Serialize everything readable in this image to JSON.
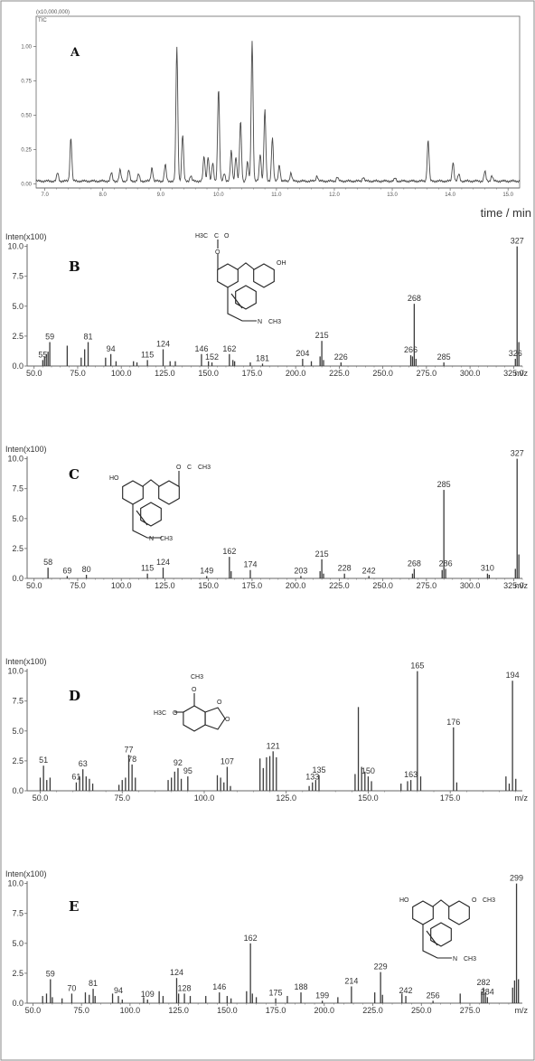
{
  "colors": {
    "trace": "#4a4a4a",
    "axis": "#666666",
    "frame": "#8a8a8a",
    "text": "#333333"
  },
  "chart_data": [
    {
      "panel_label": "A",
      "type": "line",
      "scale_text": "(x10,000,000)",
      "trace_label": "TIC",
      "xlabel": "time / min",
      "xlim": [
        6.85,
        15.2
      ],
      "ylim": [
        -0.03,
        1.22
      ],
      "x_ticks": [
        7.0,
        8.0,
        9.0,
        10.0,
        11.0,
        12.0,
        13.0,
        14.0,
        15.0
      ],
      "x_tick_labels": [
        "7.0",
        "8.0",
        "9.0",
        "10.0",
        "11.0",
        "12.0",
        "13.0",
        "14.0",
        "15.0"
      ],
      "y_ticks": [
        0.0,
        0.25,
        0.5,
        0.75,
        1.0
      ],
      "y_tick_labels": [
        "0.00",
        "0.25",
        "0.50",
        "0.75",
        "1.00"
      ],
      "baseline": 0.02,
      "peaks": [
        [
          7.22,
          0.08
        ],
        [
          7.45,
          0.34
        ],
        [
          8.15,
          0.08
        ],
        [
          8.3,
          0.1
        ],
        [
          8.45,
          0.1
        ],
        [
          8.62,
          0.07
        ],
        [
          8.85,
          0.12
        ],
        [
          9.08,
          0.14
        ],
        [
          9.28,
          1.0
        ],
        [
          9.38,
          0.36
        ],
        [
          9.52,
          0.06
        ],
        [
          9.75,
          0.2
        ],
        [
          9.82,
          0.2
        ],
        [
          9.9,
          0.15
        ],
        [
          10.0,
          0.7
        ],
        [
          10.1,
          0.08
        ],
        [
          10.22,
          0.24
        ],
        [
          10.3,
          0.2
        ],
        [
          10.38,
          0.46
        ],
        [
          10.5,
          0.16
        ],
        [
          10.58,
          1.05
        ],
        [
          10.72,
          0.22
        ],
        [
          10.8,
          0.54
        ],
        [
          10.93,
          0.34
        ],
        [
          11.05,
          0.14
        ],
        [
          11.25,
          0.08
        ],
        [
          11.7,
          0.06
        ],
        [
          12.05,
          0.05
        ],
        [
          12.5,
          0.05
        ],
        [
          13.05,
          0.04
        ],
        [
          13.62,
          0.32
        ],
        [
          14.05,
          0.16
        ],
        [
          14.15,
          0.07
        ],
        [
          14.6,
          0.09
        ],
        [
          14.72,
          0.06
        ]
      ]
    },
    {
      "panel_label": "B",
      "type": "bar",
      "ylabel": "Inten(x100)",
      "xlabel": "m/z",
      "xlim": [
        46,
        330
      ],
      "ylim": [
        0,
        10.2
      ],
      "x_ticks": [
        50,
        75,
        100,
        125,
        150,
        175,
        200,
        225,
        250,
        275,
        300,
        325
      ],
      "x_tick_labels": [
        "50.0",
        "75.0",
        "100.0",
        "125.0",
        "150.0",
        "175.0",
        "200.0",
        "225.0",
        "250.0",
        "275.0",
        "300.0",
        "325.0"
      ],
      "y_ticks": [
        0,
        2.5,
        5,
        7.5,
        10
      ],
      "y_tick_labels": [
        "0.0",
        "2.5",
        "5.0",
        "7.5",
        "10.0"
      ],
      "peaks": [
        [
          55,
          0.5
        ],
        [
          56,
          0.8
        ],
        [
          57,
          1.0
        ],
        [
          58,
          1.2
        ],
        [
          59,
          2.0
        ],
        [
          69,
          1.7
        ],
        [
          77,
          0.7
        ],
        [
          79,
          1.4
        ],
        [
          81,
          2.0
        ],
        [
          91,
          0.7
        ],
        [
          94,
          1.0
        ],
        [
          97,
          0.4
        ],
        [
          107,
          0.4
        ],
        [
          109,
          0.3
        ],
        [
          115,
          0.5
        ],
        [
          124,
          1.4
        ],
        [
          128,
          0.4
        ],
        [
          131,
          0.4
        ],
        [
          146,
          1.0
        ],
        [
          150,
          0.4
        ],
        [
          152,
          0.3
        ],
        [
          162,
          1.0
        ],
        [
          164,
          0.5
        ],
        [
          165,
          0.4
        ],
        [
          174,
          0.3
        ],
        [
          181,
          0.2
        ],
        [
          204,
          0.6
        ],
        [
          209,
          0.4
        ],
        [
          214,
          0.8
        ],
        [
          215,
          2.1
        ],
        [
          216,
          0.5
        ],
        [
          226,
          0.3
        ],
        [
          266,
          0.9
        ],
        [
          267,
          0.8
        ],
        [
          268,
          5.2
        ],
        [
          269,
          0.6
        ],
        [
          285,
          0.3
        ],
        [
          326,
          0.6
        ],
        [
          327,
          10.0
        ],
        [
          328,
          2.0
        ]
      ],
      "peak_labels": [
        [
          59,
          "59"
        ],
        [
          55,
          "55"
        ],
        [
          81,
          "81"
        ],
        [
          94,
          "94"
        ],
        [
          115,
          "115"
        ],
        [
          124,
          "124"
        ],
        [
          146,
          "146"
        ],
        [
          152,
          "152"
        ],
        [
          162,
          "162"
        ],
        [
          181,
          "181"
        ],
        [
          204,
          "204"
        ],
        [
          215,
          "215"
        ],
        [
          226,
          "226"
        ],
        [
          266,
          "266"
        ],
        [
          268,
          "268"
        ],
        [
          285,
          "285"
        ],
        [
          326,
          "326"
        ],
        [
          327,
          "327"
        ]
      ]
    },
    {
      "panel_label": "C",
      "type": "bar",
      "ylabel": "Inten(x100)",
      "xlabel": "m/z",
      "xlim": [
        46,
        330
      ],
      "ylim": [
        0,
        10.2
      ],
      "x_ticks": [
        50,
        75,
        100,
        125,
        150,
        175,
        200,
        225,
        250,
        275,
        300,
        325
      ],
      "x_tick_labels": [
        "50.0",
        "75.0",
        "100.0",
        "125.0",
        "150.0",
        "175.0",
        "200.0",
        "225.0",
        "250.0",
        "275.0",
        "300.0",
        "325.0"
      ],
      "y_ticks": [
        0,
        2.5,
        5,
        7.5,
        10
      ],
      "y_tick_labels": [
        "0.0",
        "2.5",
        "5.0",
        "7.5",
        "10.0"
      ],
      "peaks": [
        [
          58,
          0.9
        ],
        [
          69,
          0.2
        ],
        [
          80,
          0.3
        ],
        [
          115,
          0.4
        ],
        [
          124,
          0.9
        ],
        [
          149,
          0.2
        ],
        [
          162,
          1.8
        ],
        [
          163,
          0.6
        ],
        [
          174,
          0.7
        ],
        [
          203,
          0.2
        ],
        [
          214,
          0.6
        ],
        [
          215,
          1.6
        ],
        [
          216,
          0.4
        ],
        [
          228,
          0.4
        ],
        [
          242,
          0.2
        ],
        [
          267,
          0.4
        ],
        [
          268,
          0.8
        ],
        [
          284,
          0.7
        ],
        [
          285,
          7.4
        ],
        [
          286,
          0.8
        ],
        [
          310,
          0.4
        ],
        [
          311,
          0.3
        ],
        [
          326,
          0.8
        ],
        [
          327,
          10.0
        ],
        [
          328,
          2.0
        ]
      ],
      "peak_labels": [
        [
          58,
          "58"
        ],
        [
          69,
          "69"
        ],
        [
          80,
          "80"
        ],
        [
          115,
          "115"
        ],
        [
          124,
          "124"
        ],
        [
          149,
          "149"
        ],
        [
          162,
          "162"
        ],
        [
          174,
          "174"
        ],
        [
          203,
          "203"
        ],
        [
          215,
          "215"
        ],
        [
          228,
          "228"
        ],
        [
          242,
          "242"
        ],
        [
          268,
          "268"
        ],
        [
          285,
          "285"
        ],
        [
          286,
          "286"
        ],
        [
          310,
          "310"
        ],
        [
          327,
          "327"
        ]
      ]
    },
    {
      "panel_label": "D",
      "type": "bar",
      "ylabel": "Inten(x100)",
      "xlabel": "m/z",
      "xlim": [
        46,
        197
      ],
      "ylim": [
        0,
        10.2
      ],
      "x_ticks": [
        50,
        75,
        100,
        125,
        150,
        175
      ],
      "x_tick_labels": [
        "50.0",
        "75.0",
        "100.0",
        "125.0",
        "150.0",
        "175.0"
      ],
      "y_ticks": [
        0,
        2.5,
        5,
        7.5,
        10
      ],
      "y_tick_labels": [
        "0.0",
        "2.5",
        "5.0",
        "7.5",
        "10.0"
      ],
      "peaks": [
        [
          50,
          1.1
        ],
        [
          51,
          2.1
        ],
        [
          52,
          0.9
        ],
        [
          53,
          1.1
        ],
        [
          61,
          0.7
        ],
        [
          62,
          1.2
        ],
        [
          63,
          1.8
        ],
        [
          64,
          1.2
        ],
        [
          65,
          1.0
        ],
        [
          66,
          0.6
        ],
        [
          74,
          0.5
        ],
        [
          75,
          0.9
        ],
        [
          76,
          1.1
        ],
        [
          77,
          3.0
        ],
        [
          78,
          2.2
        ],
        [
          79,
          1.1
        ],
        [
          89,
          0.9
        ],
        [
          90,
          1.1
        ],
        [
          91,
          1.6
        ],
        [
          92,
          1.9
        ],
        [
          93,
          1.0
        ],
        [
          95,
          1.2
        ],
        [
          104,
          1.3
        ],
        [
          105,
          1.1
        ],
        [
          106,
          0.7
        ],
        [
          107,
          2.0
        ],
        [
          108,
          0.4
        ],
        [
          117,
          2.7
        ],
        [
          118,
          1.9
        ],
        [
          119,
          2.8
        ],
        [
          120,
          2.9
        ],
        [
          121,
          3.3
        ],
        [
          122,
          2.8
        ],
        [
          132,
          0.4
        ],
        [
          133,
          0.7
        ],
        [
          134,
          0.9
        ],
        [
          135,
          1.3
        ],
        [
          146,
          1.4
        ],
        [
          147,
          7.0
        ],
        [
          148,
          2.0
        ],
        [
          149,
          1.6
        ],
        [
          150,
          1.2
        ],
        [
          151,
          0.8
        ],
        [
          160,
          0.6
        ],
        [
          162,
          0.8
        ],
        [
          163,
          0.9
        ],
        [
          165,
          10.0
        ],
        [
          166,
          1.2
        ],
        [
          176,
          5.3
        ],
        [
          177,
          0.7
        ],
        [
          192,
          1.2
        ],
        [
          193,
          0.6
        ],
        [
          194,
          9.2
        ],
        [
          195,
          1.0
        ]
      ],
      "peak_labels": [
        [
          51,
          "51"
        ],
        [
          61,
          "61"
        ],
        [
          63,
          "63"
        ],
        [
          77,
          "77"
        ],
        [
          78,
          "78"
        ],
        [
          92,
          "92"
        ],
        [
          95,
          "95"
        ],
        [
          107,
          "107"
        ],
        [
          121,
          "121"
        ],
        [
          133,
          "133"
        ],
        [
          135,
          "135"
        ],
        [
          150,
          "150"
        ],
        [
          163,
          "163"
        ],
        [
          165,
          "165"
        ],
        [
          176,
          "176"
        ],
        [
          194,
          "194"
        ]
      ]
    },
    {
      "panel_label": "E",
      "type": "bar",
      "ylabel": "Inten(x100)",
      "xlabel": "m/z",
      "xlim": [
        47,
        302
      ],
      "ylim": [
        0,
        10.2
      ],
      "x_ticks": [
        50,
        75,
        100,
        125,
        150,
        175,
        200,
        225,
        250,
        275
      ],
      "x_tick_labels": [
        "50.0",
        "75.0",
        "100.0",
        "125.0",
        "150.0",
        "175.0",
        "200.0",
        "225.0",
        "250.0",
        "275.0"
      ],
      "y_ticks": [
        0,
        2.5,
        5,
        7.5,
        10
      ],
      "y_tick_labels": [
        "0.0",
        "2.5",
        "5.0",
        "7.5",
        "10.0"
      ],
      "peaks": [
        [
          55,
          0.6
        ],
        [
          57,
          0.8
        ],
        [
          59,
          2.0
        ],
        [
          60,
          0.5
        ],
        [
          65,
          0.4
        ],
        [
          70,
          0.8
        ],
        [
          77,
          0.9
        ],
        [
          79,
          0.7
        ],
        [
          81,
          1.2
        ],
        [
          82,
          0.6
        ],
        [
          91,
          0.8
        ],
        [
          94,
          0.6
        ],
        [
          96,
          0.3
        ],
        [
          107,
          0.5
        ],
        [
          109,
          0.3
        ],
        [
          115,
          1.0
        ],
        [
          117,
          0.6
        ],
        [
          124,
          2.1
        ],
        [
          125,
          0.8
        ],
        [
          128,
          0.8
        ],
        [
          131,
          0.6
        ],
        [
          139,
          0.6
        ],
        [
          146,
          0.9
        ],
        [
          150,
          0.6
        ],
        [
          152,
          0.4
        ],
        [
          160,
          1.0
        ],
        [
          162,
          5.0
        ],
        [
          163,
          0.8
        ],
        [
          165,
          0.5
        ],
        [
          175,
          0.4
        ],
        [
          181,
          0.6
        ],
        [
          188,
          0.9
        ],
        [
          199,
          0.2
        ],
        [
          207,
          0.5
        ],
        [
          214,
          1.4
        ],
        [
          226,
          0.9
        ],
        [
          229,
          2.6
        ],
        [
          230,
          0.7
        ],
        [
          240,
          0.8
        ],
        [
          242,
          0.6
        ],
        [
          256,
          0.2
        ],
        [
          270,
          0.8
        ],
        [
          281,
          1.0
        ],
        [
          282,
          1.3
        ],
        [
          283,
          0.9
        ],
        [
          284,
          0.5
        ],
        [
          297,
          1.3
        ],
        [
          298,
          1.9
        ],
        [
          299,
          10.0
        ],
        [
          300,
          2.0
        ]
      ],
      "peak_labels": [
        [
          59,
          "59"
        ],
        [
          70,
          "70"
        ],
        [
          81,
          "81"
        ],
        [
          94,
          "94"
        ],
        [
          109,
          "109"
        ],
        [
          124,
          "124"
        ],
        [
          128,
          "128"
        ],
        [
          146,
          "146"
        ],
        [
          162,
          "162"
        ],
        [
          175,
          "175"
        ],
        [
          188,
          "188"
        ],
        [
          199,
          "199"
        ],
        [
          214,
          "214"
        ],
        [
          229,
          "229"
        ],
        [
          242,
          "242"
        ],
        [
          256,
          "256"
        ],
        [
          282,
          "282"
        ],
        [
          284,
          "284"
        ],
        [
          299,
          "299"
        ]
      ]
    }
  ],
  "structures": [
    {
      "panel": "B",
      "labels": [
        "H3C",
        "C",
        "O",
        "O",
        "OH",
        "N",
        "CH3"
      ]
    },
    {
      "panel": "C",
      "labels": [
        "HO",
        "O",
        "C",
        "CH3",
        "N",
        "CH3"
      ]
    },
    {
      "panel": "D",
      "labels": [
        "CH3",
        "O",
        "O",
        "H3C",
        "O",
        "O"
      ]
    },
    {
      "panel": "E",
      "labels": [
        "HO",
        "O",
        "CH3",
        "N",
        "CH3"
      ]
    }
  ]
}
